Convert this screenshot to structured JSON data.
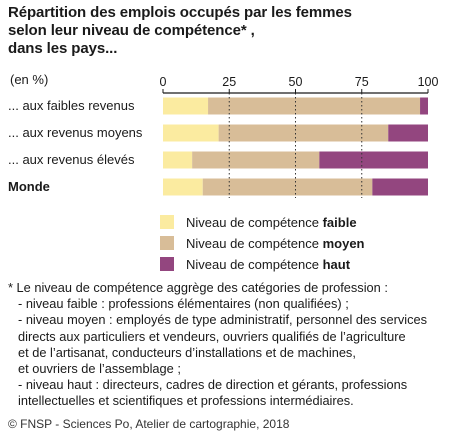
{
  "title_lines": [
    "Répartition des emplois occupés par les femmes",
    "selon leur niveau de compétence* ,",
    "dans les pays..."
  ],
  "unit": "(en %)",
  "legend": [
    {
      "text": "Niveau de compétence ",
      "bold": "faible",
      "color": "#fbeba0"
    },
    {
      "text": "Niveau de compétence ",
      "bold": "moyen",
      "color": "#d8bd98"
    },
    {
      "text": "Niveau de compétence ",
      "bold": "haut",
      "color": "#93467f"
    }
  ],
  "notes": [
    "* Le niveau de compétence aggrège des catégories de profession :",
    "- niveau faible : professions élémentaires (non qualifiées) ;",
    "- niveau moyen : employés de type administratif, personnel des services",
    "directs aux particuliers et vendeurs, ouvriers qualifiés de l’agriculture",
    "et de l’artisanat, conducteurs d’installations et de machines,",
    "et ouvriers de l’assemblage ;",
    "- niveau haut : directeurs, cadres de direction et gérants, professions",
    "intellectuelles et scientifiques et professions intermédiaires."
  ],
  "credit": "© FNSP - Sciences Po, Atelier de cartographie, 2018",
  "chart_data": {
    "type": "bar",
    "orientation": "horizontal",
    "stacked": true,
    "categories": [
      "... aux faibles revenus",
      "... aux revenus moyens",
      "... aux revenus élevés",
      "Monde"
    ],
    "category_bold": [
      false,
      false,
      false,
      true
    ],
    "series": [
      {
        "name": "Niveau de compétence faible",
        "values": [
          17,
          21,
          11,
          15
        ],
        "color": "#fbeba0"
      },
      {
        "name": "Niveau de compétence moyen",
        "values": [
          80,
          64,
          48,
          64
        ],
        "color": "#d8bd98"
      },
      {
        "name": "Niveau de compétence haut",
        "values": [
          3,
          15,
          41,
          21
        ],
        "color": "#93467f"
      }
    ],
    "xlim": [
      0,
      100
    ],
    "xticks": [
      0,
      25,
      50,
      75,
      100
    ],
    "grid": "dotted vertical at 25, 50, 75",
    "legend_position": "bottom"
  }
}
